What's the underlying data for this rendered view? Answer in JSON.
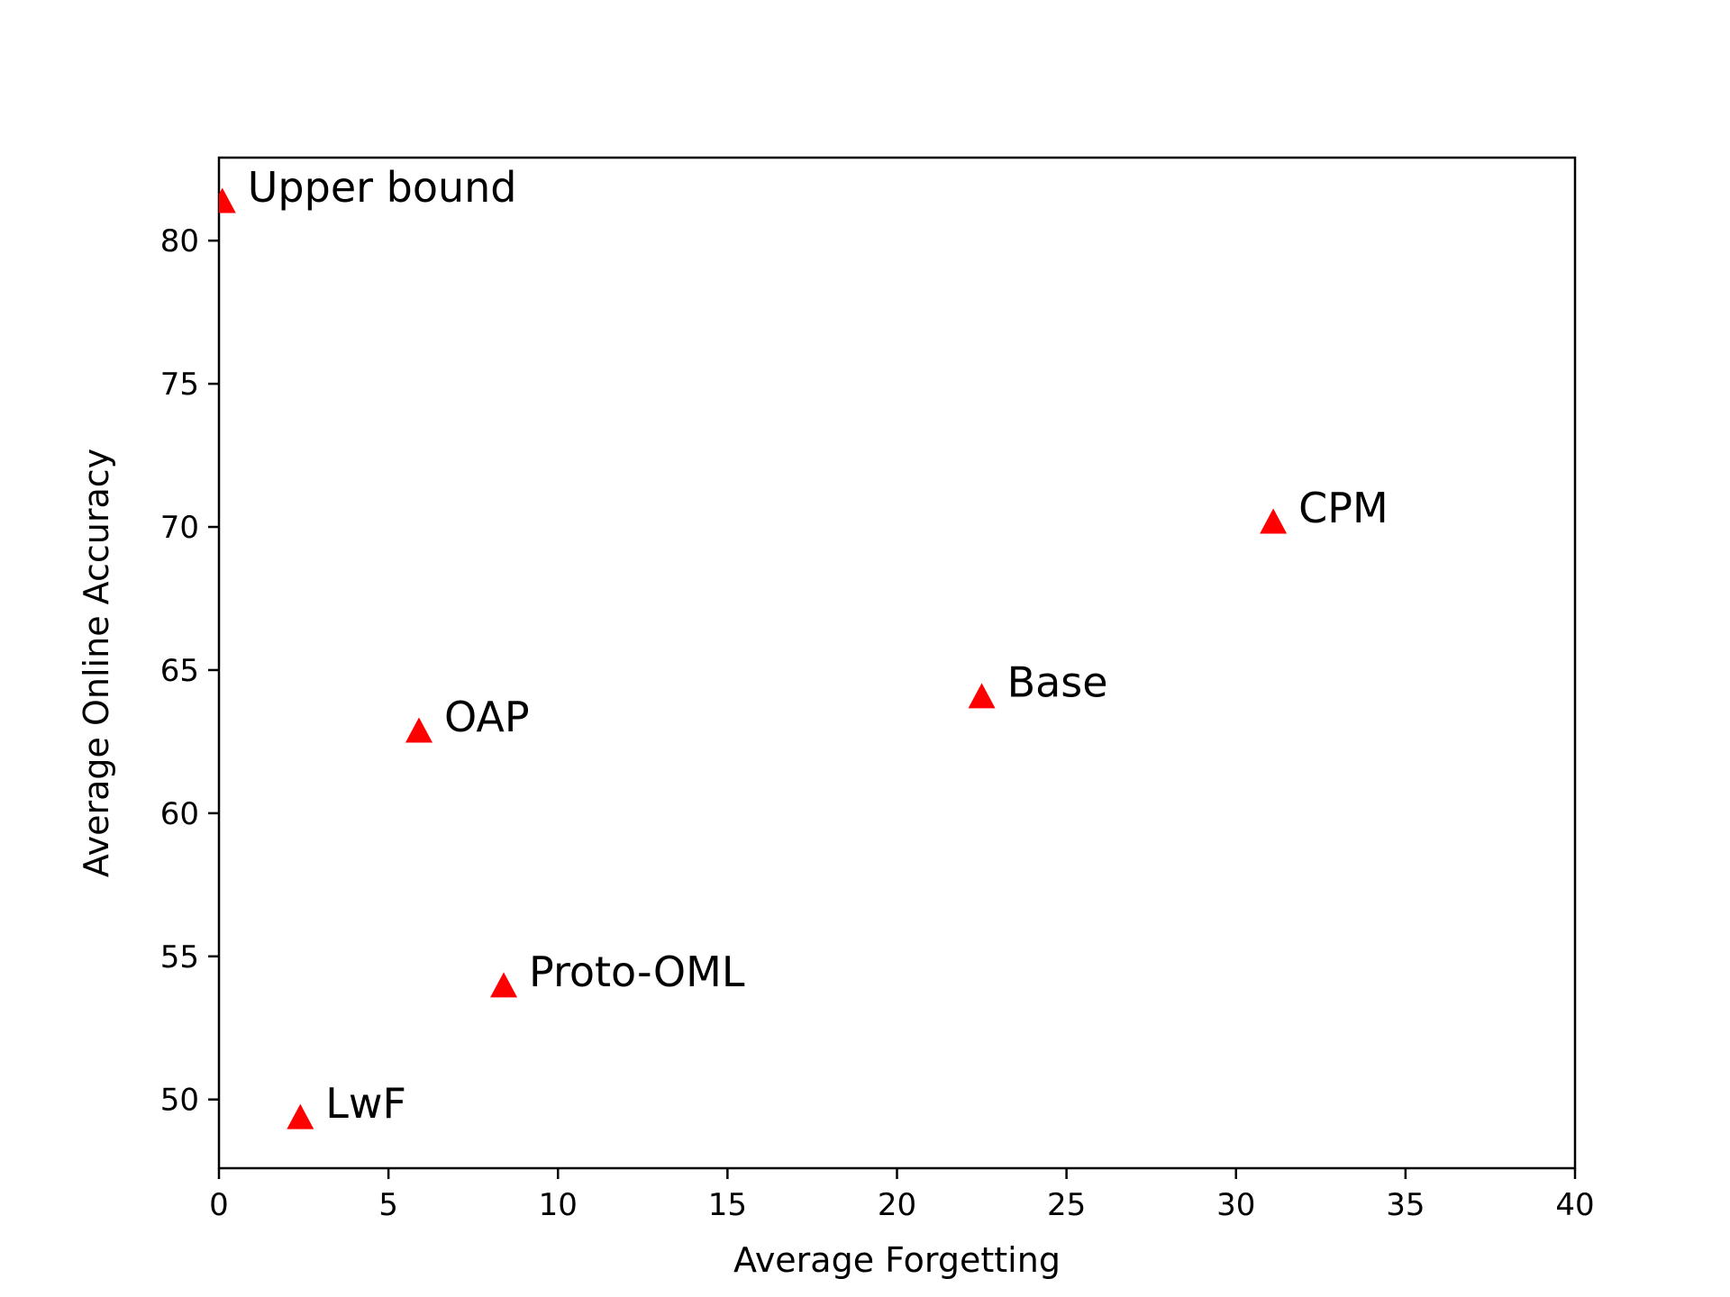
{
  "chart_data": {
    "type": "scatter",
    "title": "",
    "xlabel": "Average Forgetting",
    "ylabel": "Average Online Accuracy",
    "xlim": [
      0,
      40
    ],
    "ylim": [
      47.6,
      82.9
    ],
    "xticks": [
      0,
      5,
      10,
      15,
      20,
      25,
      30,
      35,
      40
    ],
    "yticks": [
      50,
      55,
      60,
      65,
      70,
      75,
      80
    ],
    "grid": false,
    "legend": "none",
    "marker": "triangle-up",
    "marker_color": "#ff0000",
    "points": [
      {
        "label": "Upper bound",
        "x": 0.1,
        "y": 81.3
      },
      {
        "label": "CPM",
        "x": 31.1,
        "y": 70.1
      },
      {
        "label": "Base",
        "x": 22.5,
        "y": 64.0
      },
      {
        "label": "OAP",
        "x": 5.9,
        "y": 62.8
      },
      {
        "label": "Proto-OML",
        "x": 8.4,
        "y": 53.9
      },
      {
        "label": "LwF",
        "x": 2.4,
        "y": 49.3
      }
    ]
  }
}
